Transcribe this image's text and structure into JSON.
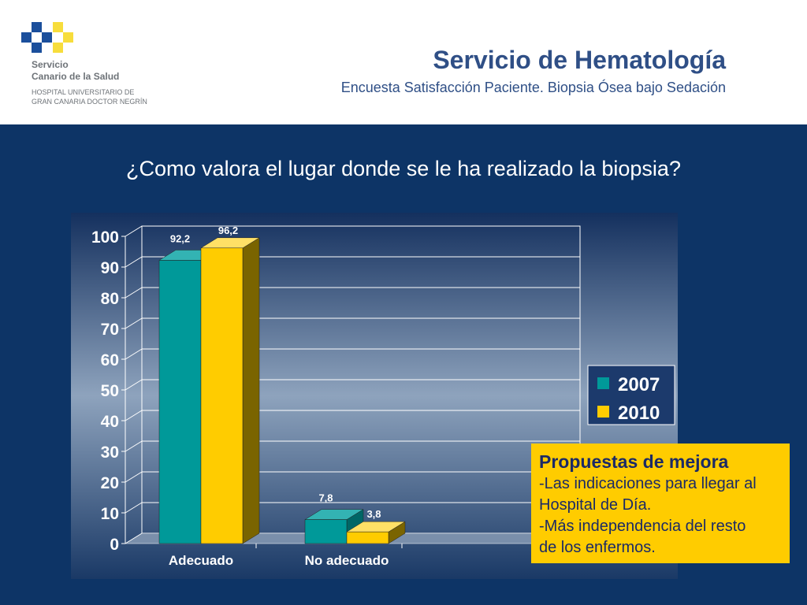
{
  "header": {
    "logo_line1": "Servicio",
    "logo_line2": "Canario de la Salud",
    "logo_line3": "HOSPITAL UNIVERSITARIO DE",
    "logo_line4": "GRAN CANARIA DOCTOR NEGRÍN",
    "title": "Servicio de Hematología",
    "subtitle": "Encuesta Satisfacción Paciente. Biopsia Ósea bajo Sedación"
  },
  "question": "¿Como valora el lugar donde se le ha realizado la biopsia?",
  "colors": {
    "background": "#0d3466",
    "series_2007": "#009999",
    "series_2010": "#ffcc00",
    "title_blue": "#2f4f86",
    "note_bg": "#ffcc00"
  },
  "chart_data": {
    "type": "bar",
    "categories": [
      "Adecuado",
      "No adecuado"
    ],
    "series": [
      {
        "name": "2007",
        "values": [
          92.2,
          7.8
        ],
        "labels": [
          "92,2",
          "7,8"
        ]
      },
      {
        "name": "2010",
        "values": [
          96.2,
          3.8
        ],
        "labels": [
          "96,2",
          "3,8"
        ]
      }
    ],
    "y_ticks": [
      "0",
      "10",
      "20",
      "30",
      "40",
      "50",
      "60",
      "70",
      "80",
      "90",
      "100"
    ],
    "ylim": [
      0,
      100
    ],
    "grid": true,
    "legend": "right",
    "style": "3d"
  },
  "note": {
    "heading": "Propuestas de mejora",
    "line1": "-Las indicaciones para llegar al",
    "line2": "Hospital de Día.",
    "line3": "-Más independencia del resto",
    "line4": "de los enfermos."
  }
}
